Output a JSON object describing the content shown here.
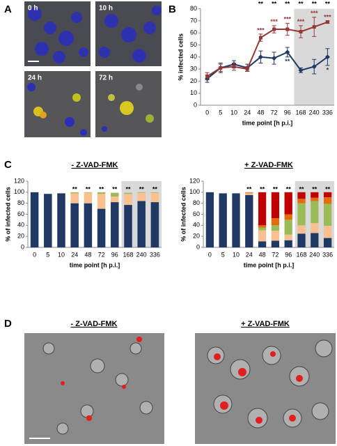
{
  "panel_labels": [
    "A",
    "B",
    "C",
    "D"
  ],
  "panel_a": {
    "images": [
      {
        "label": "0 h"
      },
      {
        "label": "10 h"
      },
      {
        "label": "24 h"
      },
      {
        "label": "72 h"
      }
    ]
  },
  "panel_d": {
    "titles": [
      "- Z-VAD-FMK",
      "+ Z-VAD-FMK"
    ]
  },
  "chart_data": [
    {
      "type": "line",
      "y_label": "% infected cells",
      "x_label": "time point [h p.i.]",
      "categories": [
        "0",
        "5",
        "10",
        "24",
        "48",
        "72",
        "96",
        "168",
        "240",
        "336"
      ],
      "ylim": [
        0,
        80
      ],
      "yticks": [
        0,
        10,
        20,
        30,
        40,
        50,
        60,
        70,
        80
      ],
      "shaded_from": "168",
      "significance": [
        null,
        null,
        null,
        null,
        "**",
        "**",
        "**",
        "**",
        "**",
        "**"
      ],
      "series": [
        {
          "color": "#1f3864",
          "marker": "diamond",
          "values": [
            22,
            31,
            34,
            31,
            40,
            39,
            44,
            29,
            32,
            40
          ],
          "errors": [
            3,
            4,
            3,
            3,
            5,
            5,
            4,
            2,
            6,
            7
          ],
          "significance": [
            null,
            null,
            null,
            null,
            null,
            null,
            "**",
            null,
            null,
            "*"
          ]
        },
        {
          "color": "#953735",
          "marker": "square",
          "values": [
            24,
            31,
            32,
            30,
            56,
            63,
            63,
            61,
            65,
            69
          ],
          "errors": [
            3,
            3,
            3,
            2,
            3,
            3,
            5,
            5,
            8,
            1
          ],
          "significance": [
            null,
            null,
            null,
            null,
            "***",
            "***",
            "***",
            "***",
            "***",
            "***"
          ]
        }
      ]
    },
    {
      "type": "bar",
      "stacked": true,
      "title": "- Z-VAD-FMK",
      "y_label": "% of infected cells",
      "x_label": "time point [h p.i.]",
      "categories": [
        "0",
        "5",
        "10",
        "24",
        "48",
        "72",
        "96",
        "168",
        "240",
        "336"
      ],
      "ylim": [
        0,
        120
      ],
      "yticks": [
        0,
        20,
        40,
        60,
        80,
        100,
        120
      ],
      "shaded_from": "168",
      "significance": [
        null,
        null,
        null,
        "**",
        "**",
        "**",
        "**",
        "**",
        "**",
        "**"
      ],
      "series": [
        {
          "color": "#1f3864",
          "values": [
            100,
            97,
            98,
            80,
            80,
            70,
            82,
            77,
            84,
            82
          ]
        },
        {
          "color": "#fac090",
          "values": [
            0,
            0,
            0,
            18,
            19,
            27,
            10,
            20,
            15,
            17
          ]
        },
        {
          "color": "#9bbb59",
          "values": [
            0,
            0,
            0,
            2,
            1,
            3,
            7,
            2,
            1,
            1
          ]
        }
      ]
    },
    {
      "type": "bar",
      "stacked": true,
      "title": "+ Z-VAD-FMK",
      "y_label": "% of infected cells",
      "x_label": "time point [h p.i.]",
      "categories": [
        "0",
        "5",
        "10",
        "24",
        "48",
        "72",
        "96",
        "168",
        "240",
        "336"
      ],
      "ylim": [
        0,
        120
      ],
      "yticks": [
        0,
        20,
        40,
        60,
        80,
        100,
        120
      ],
      "shaded_from": "168",
      "significance": [
        null,
        null,
        null,
        "**",
        "**",
        "**",
        "**",
        "**",
        "**",
        "**"
      ],
      "series": [
        {
          "color": "#1f3864",
          "values": [
            100,
            98,
            98,
            95,
            11,
            12,
            13,
            25,
            26,
            17
          ]
        },
        {
          "color": "#fac090",
          "values": [
            0,
            0,
            0,
            3,
            20,
            18,
            10,
            15,
            18,
            22
          ]
        },
        {
          "color": "#9bbb59",
          "values": [
            0,
            0,
            0,
            1,
            5,
            10,
            27,
            40,
            40,
            40
          ]
        },
        {
          "color": "#e46c0a",
          "values": [
            0,
            0,
            0,
            1,
            4,
            13,
            10,
            8,
            6,
            12
          ]
        },
        {
          "color": "#c00000",
          "values": [
            0,
            0,
            0,
            0,
            60,
            47,
            40,
            12,
            10,
            9
          ]
        }
      ]
    }
  ]
}
